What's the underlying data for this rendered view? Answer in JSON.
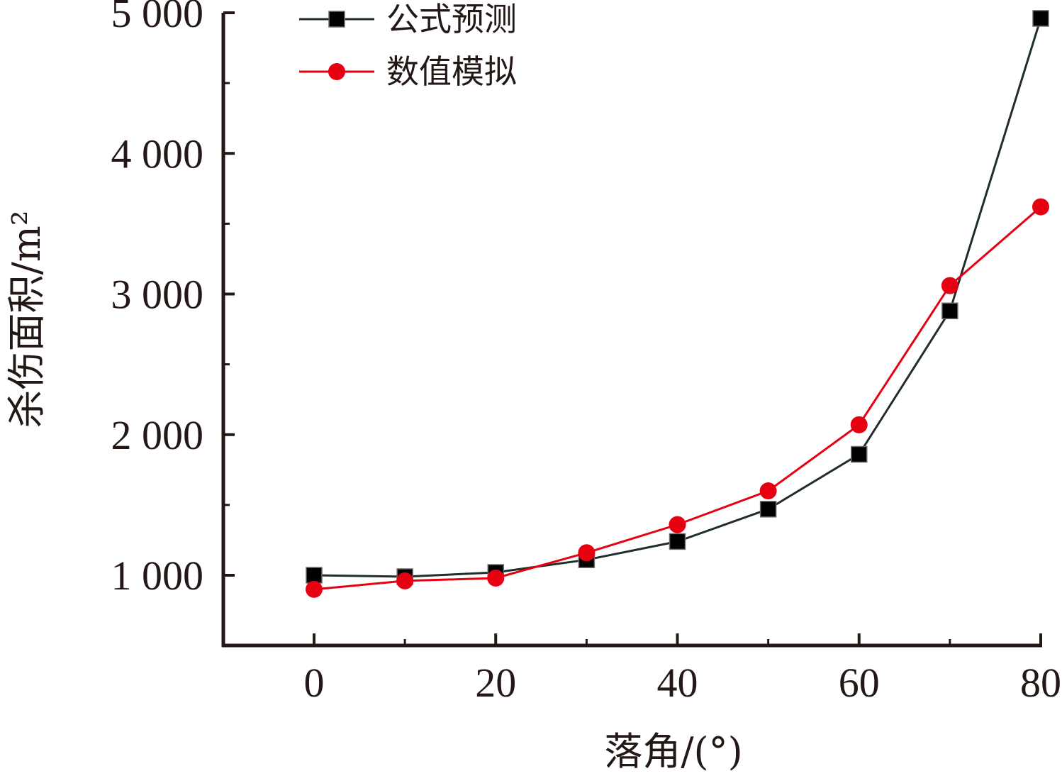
{
  "chart_data": {
    "type": "line",
    "xlabel": "落角/(°)",
    "ylabel": "杀伤面积/m²",
    "xlim": [
      -10,
      80
    ],
    "ylim": [
      500,
      5000
    ],
    "x_ticks": [
      0,
      20,
      40,
      60,
      80
    ],
    "x_tick_labels": [
      "0",
      "20",
      "40",
      "60",
      "80"
    ],
    "x_minor_ticks": [
      10,
      30,
      50,
      70
    ],
    "y_ticks": [
      1000,
      2000,
      3000,
      4000,
      5000
    ],
    "y_tick_labels": [
      "1 000",
      "2 000",
      "3 000",
      "4 000",
      "5 000"
    ],
    "y_minor_ticks": [
      1500,
      2500,
      3500,
      4500
    ],
    "grid": false,
    "legend_position": "top-left",
    "x": [
      0,
      10,
      20,
      30,
      40,
      50,
      60,
      70,
      80
    ],
    "series": [
      {
        "name": "公式预测",
        "values": [
          1000,
          990,
          1020,
          1110,
          1240,
          1470,
          1860,
          2880,
          4960
        ],
        "color": "#000000",
        "line_color": "#1f2d2b",
        "marker": "square"
      },
      {
        "name": "数值模拟",
        "values": [
          900,
          960,
          980,
          1160,
          1360,
          1600,
          2070,
          3060,
          3620
        ],
        "color": "#e60012",
        "line_color": "#e60012",
        "marker": "circle"
      }
    ]
  }
}
